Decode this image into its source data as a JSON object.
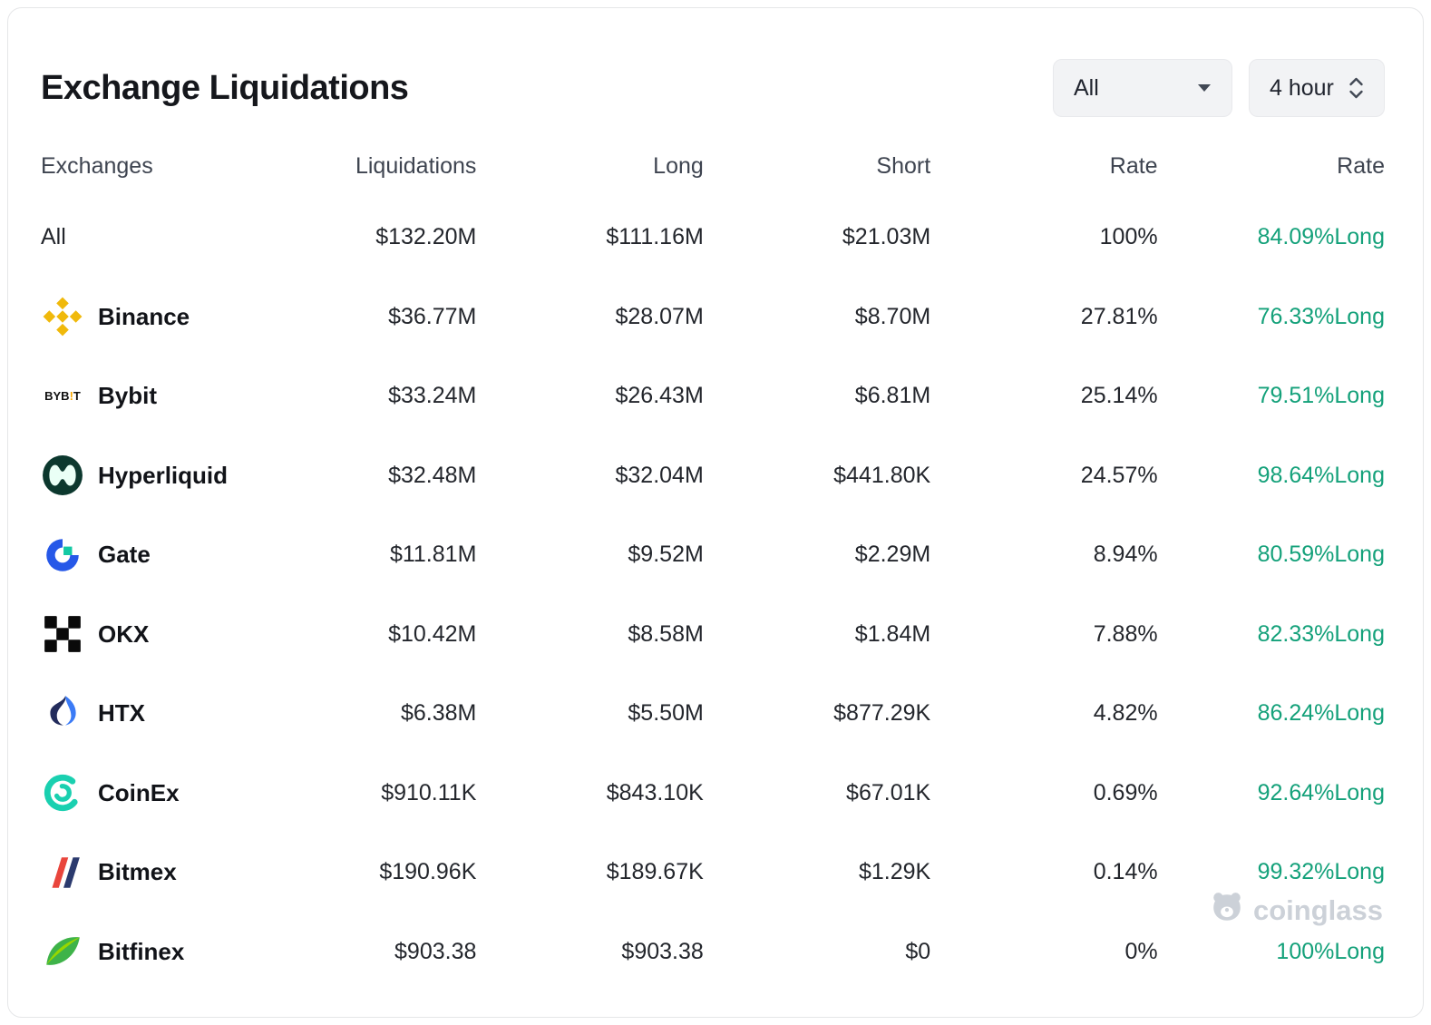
{
  "header": {
    "title": "Exchange Liquidations",
    "exchange_filter": "All",
    "timeframe": "4 hour"
  },
  "table": {
    "columns": [
      "Exchanges",
      "Liquidations",
      "Long",
      "Short",
      "Rate",
      "Rate"
    ],
    "rows": [
      {
        "name": "All",
        "icon": "none",
        "liquidations": "$132.20M",
        "long": "$111.16M",
        "short": "$21.03M",
        "rate": "100%",
        "long_rate": "84.09%Long"
      },
      {
        "name": "Binance",
        "icon": "binance",
        "liquidations": "$36.77M",
        "long": "$28.07M",
        "short": "$8.70M",
        "rate": "27.81%",
        "long_rate": "76.33%Long"
      },
      {
        "name": "Bybit",
        "icon": "bybit",
        "liquidations": "$33.24M",
        "long": "$26.43M",
        "short": "$6.81M",
        "rate": "25.14%",
        "long_rate": "79.51%Long"
      },
      {
        "name": "Hyperliquid",
        "icon": "hyperliquid",
        "liquidations": "$32.48M",
        "long": "$32.04M",
        "short": "$441.80K",
        "rate": "24.57%",
        "long_rate": "98.64%Long"
      },
      {
        "name": "Gate",
        "icon": "gate",
        "liquidations": "$11.81M",
        "long": "$9.52M",
        "short": "$2.29M",
        "rate": "8.94%",
        "long_rate": "80.59%Long"
      },
      {
        "name": "OKX",
        "icon": "okx",
        "liquidations": "$10.42M",
        "long": "$8.58M",
        "short": "$1.84M",
        "rate": "7.88%",
        "long_rate": "82.33%Long"
      },
      {
        "name": "HTX",
        "icon": "htx",
        "liquidations": "$6.38M",
        "long": "$5.50M",
        "short": "$877.29K",
        "rate": "4.82%",
        "long_rate": "86.24%Long"
      },
      {
        "name": "CoinEx",
        "icon": "coinex",
        "liquidations": "$910.11K",
        "long": "$843.10K",
        "short": "$67.01K",
        "rate": "0.69%",
        "long_rate": "92.64%Long"
      },
      {
        "name": "Bitmex",
        "icon": "bitmex",
        "liquidations": "$190.96K",
        "long": "$189.67K",
        "short": "$1.29K",
        "rate": "0.14%",
        "long_rate": "99.32%Long"
      },
      {
        "name": "Bitfinex",
        "icon": "bitfinex",
        "liquidations": "$903.38",
        "long": "$903.38",
        "short": "$0",
        "rate": "0%",
        "long_rate": "100%Long"
      }
    ]
  },
  "watermark": {
    "text": "coinglass"
  },
  "colors": {
    "long_green": "#14a17a",
    "binance_yellow": "#F0B90B",
    "title_dark": "#15171c"
  }
}
